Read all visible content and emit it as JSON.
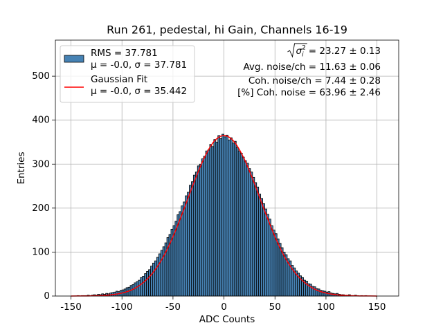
{
  "chart_data": {
    "type": "histogram",
    "title": "Run 261, pedestal, hi Gain, Channels 16-19",
    "xlabel": "ADC Counts",
    "ylabel": "Entries",
    "xlim": [
      -165.3,
      171.3
    ],
    "ylim": [
      0,
      582
    ],
    "xticks": [
      -150,
      -100,
      -50,
      0,
      50,
      100,
      150
    ],
    "yticks": [
      0,
      100,
      200,
      300,
      400,
      500
    ],
    "grid": true,
    "legend": "upper left",
    "bins": [
      -150,
      -148,
      -146,
      -144,
      -142,
      -140,
      -138,
      -136,
      -134,
      -132,
      -130,
      -128,
      -126,
      -124,
      -122,
      -120,
      -118,
      -116,
      -114,
      -112,
      -110,
      -108,
      -106,
      -104,
      -102,
      -100,
      -98,
      -96,
      -94,
      -92,
      -90,
      -88,
      -86,
      -84,
      -82,
      -80,
      -78,
      -76,
      -74,
      -72,
      -70,
      -68,
      -66,
      -64,
      -62,
      -60,
      -58,
      -56,
      -54,
      -52,
      -50,
      -48,
      -46,
      -44,
      -42,
      -40,
      -38,
      -36,
      -34,
      -32,
      -30,
      -28,
      -26,
      -24,
      -22,
      -20,
      -18,
      -16,
      -14,
      -12,
      -10,
      -8,
      -6,
      -4,
      -2,
      0,
      2,
      4,
      6,
      8,
      10,
      12,
      14,
      16,
      18,
      20,
      22,
      24,
      26,
      28,
      30,
      32,
      34,
      36,
      38,
      40,
      42,
      44,
      46,
      48,
      50,
      52,
      54,
      56,
      58,
      60,
      62,
      64,
      66,
      68,
      70,
      72,
      74,
      76,
      78,
      80,
      82,
      84,
      86,
      88,
      90,
      92,
      94,
      96,
      98,
      100,
      102,
      104,
      106,
      108,
      110,
      112,
      114,
      116,
      118,
      120,
      122,
      124,
      126,
      128,
      130,
      132,
      134,
      136,
      138,
      140,
      142,
      144,
      146,
      148,
      150,
      152,
      154,
      156
    ],
    "series": [
      {
        "name": "RMS = 37.781",
        "detail": "μ = -0.0, σ = 37.781",
        "type": "histogram",
        "color": "#4682b4",
        "edgecolor": "#000000",
        "values": [
          0,
          0,
          0,
          1,
          0,
          1,
          1,
          1,
          2,
          1,
          2,
          3,
          2,
          4,
          3,
          5,
          4,
          6,
          5,
          7,
          8,
          9,
          11,
          10,
          13,
          14,
          16,
          19,
          20,
          24,
          26,
          30,
          33,
          36,
          42,
          45,
          51,
          56,
          60,
          68,
          75,
          80,
          88,
          96,
          104,
          112,
          121,
          133,
          140,
          152,
          160,
          170,
          185,
          192,
          205,
          214,
          228,
          236,
          252,
          260,
          275,
          282,
          296,
          300,
          312,
          318,
          330,
          332,
          345,
          340,
          356,
          350,
          365,
          358,
          368,
          362,
          366,
          355,
          360,
          348,
          352,
          338,
          330,
          325,
          316,
          308,
          302,
          290,
          282,
          270,
          258,
          248,
          232,
          222,
          210,
          198,
          186,
          175,
          160,
          150,
          142,
          130,
          120,
          110,
          100,
          94,
          85,
          80,
          70,
          64,
          57,
          52,
          46,
          42,
          36,
          34,
          28,
          27,
          22,
          21,
          17,
          16,
          13,
          12,
          11,
          9,
          10,
          7,
          6,
          5,
          6,
          4,
          3,
          3,
          2,
          2,
          3,
          1,
          1,
          2,
          1,
          0,
          1,
          0,
          1,
          0,
          0,
          0,
          0,
          0,
          0,
          0,
          0
        ]
      },
      {
        "name": "Gaussian Fit",
        "detail": "μ = -0.0, σ = 35.442",
        "type": "line",
        "color": "#ff0000",
        "x": [
          -150,
          -140,
          -130,
          -120,
          -110,
          -100,
          -90,
          -80,
          -70,
          -60,
          -50,
          -40,
          -30,
          -20,
          -10,
          0,
          10,
          20,
          30,
          40,
          50,
          60,
          70,
          80,
          90,
          100,
          110,
          120,
          130,
          140,
          150
        ],
        "values": [
          0.05,
          0.15,
          0.4,
          1.2,
          3,
          6.8,
          14.5,
          29,
          52,
          87,
          135,
          193,
          255,
          311,
          351,
          365,
          351,
          311,
          255,
          193,
          135,
          87,
          52,
          29,
          14.5,
          6.8,
          3,
          1.2,
          0.4,
          0.15,
          0.05
        ]
      }
    ],
    "annotations": [
      {
        "symbol": "σ",
        "subscript": "i",
        "superscript": "2",
        "text": "= 23.27 ± 0.13"
      },
      "Avg. noise/ch = 11.63 ± 0.06",
      "Coh. noise/ch = 7.44 ± 0.28",
      "[%] Coh. noise = 63.96 ± 2.46"
    ]
  }
}
